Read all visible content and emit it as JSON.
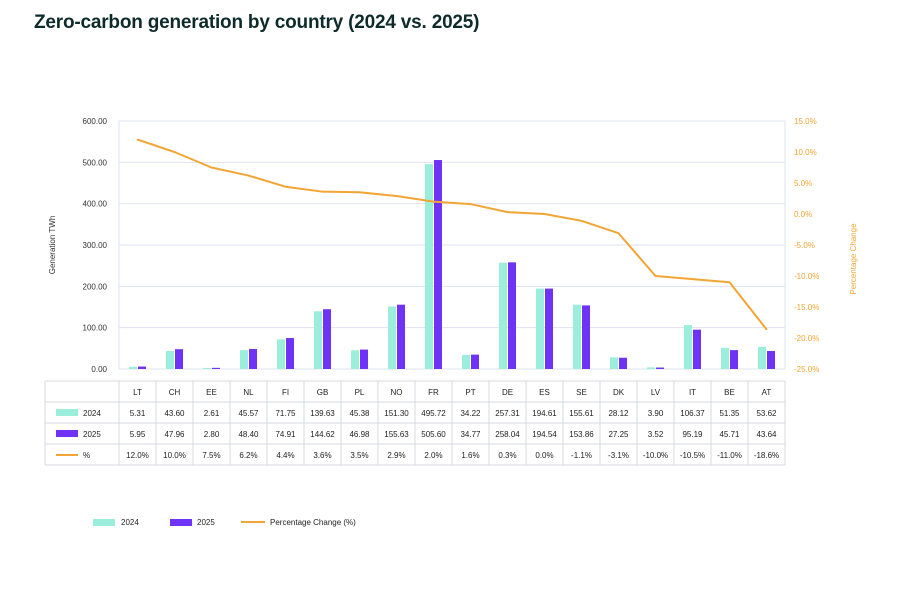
{
  "title": "Zero-carbon generation by country (2024 vs. 2025)",
  "chart_data": {
    "type": "bar",
    "categories": [
      "LT",
      "CH",
      "EE",
      "NL",
      "FI",
      "GB",
      "PL",
      "NO",
      "FR",
      "PT",
      "DE",
      "ES",
      "SE",
      "DK",
      "LV",
      "IT",
      "BE",
      "AT"
    ],
    "series": [
      {
        "name": "2024",
        "color": "#9beedc",
        "values": [
          5.31,
          43.6,
          2.61,
          45.57,
          71.75,
          139.63,
          45.38,
          151.3,
          495.72,
          34.22,
          257.31,
          194.61,
          155.61,
          28.12,
          3.9,
          106.37,
          51.35,
          53.62
        ],
        "labels": [
          "5.31",
          "43.60",
          "2.61",
          "45.57",
          "71.75",
          "139.63",
          "45.38",
          "151.30",
          "495.72",
          "34.22",
          "257.31",
          "194.61",
          "155.61",
          "28.12",
          "3.90",
          "106.37",
          "51.35",
          "53.62"
        ]
      },
      {
        "name": "2025",
        "color": "#6f33f5",
        "values": [
          5.95,
          47.96,
          2.8,
          48.4,
          74.91,
          144.62,
          46.98,
          155.63,
          505.6,
          34.77,
          258.04,
          194.54,
          153.86,
          27.25,
          3.52,
          95.19,
          45.71,
          43.64
        ],
        "labels": [
          "5.95",
          "47.96",
          "2.80",
          "48.40",
          "74.91",
          "144.62",
          "46.98",
          "155.63",
          "505.60",
          "34.77",
          "258.04",
          "194.54",
          "153.86",
          "27.25",
          "3.52",
          "95.19",
          "45.71",
          "43.64"
        ]
      }
    ],
    "line": {
      "name": "Percentage Change (%)",
      "table_label": "%",
      "color": "#f2a534",
      "values": [
        12.0,
        10.0,
        7.5,
        6.2,
        4.4,
        3.6,
        3.5,
        2.9,
        2.0,
        1.6,
        0.3,
        0.0,
        -1.1,
        -3.1,
        -10.0,
        -10.5,
        -11.0,
        -18.6
      ],
      "labels": [
        "12.0%",
        "10.0%",
        "7.5%",
        "6.2%",
        "4.4%",
        "3.6%",
        "3.5%",
        "2.9%",
        "2.0%",
        "1.6%",
        "0.3%",
        "0.0%",
        "-1.1%",
        "-3.1%",
        "-10.0%",
        "-10.5%",
        "-11.0%",
        "-18.6%"
      ]
    },
    "ylabel": "Generation TWh",
    "ylim": [
      0,
      600
    ],
    "yticks": [
      "0.00",
      "100.00",
      "200.00",
      "300.00",
      "400.00",
      "500.00",
      "600.00"
    ],
    "y2label": "Percentage Change",
    "y2lim": [
      -25,
      15
    ],
    "y2ticks": [
      "15.0%",
      "10.0%",
      "5.0%",
      "0.0%",
      "-5.0%",
      "-10.0%",
      "-15.0%",
      "-20.0%",
      "-25.0%"
    ],
    "grid": true,
    "legend": "bottom-left"
  }
}
